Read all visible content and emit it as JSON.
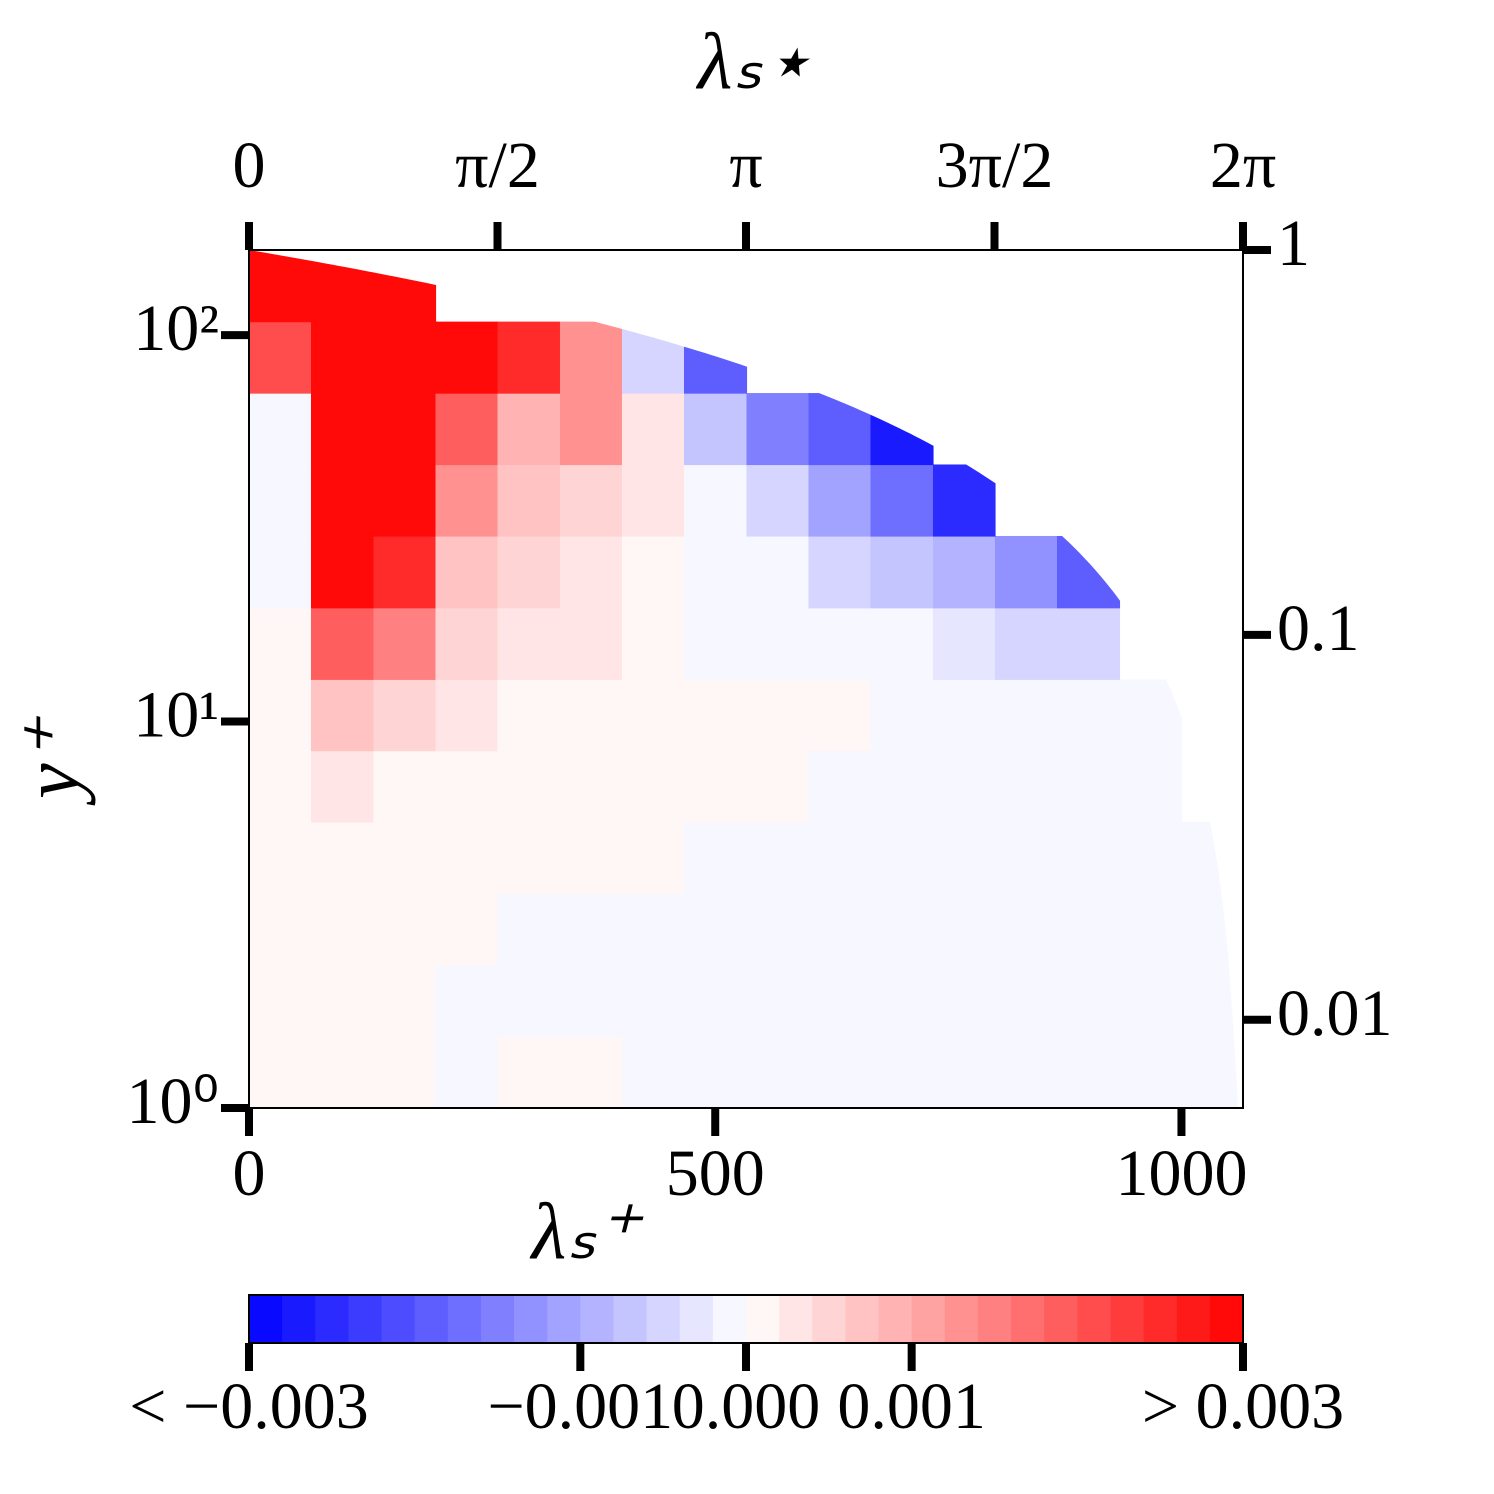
{
  "chart_data": {
    "type": "contour",
    "xlabel": "λₛ⁺",
    "ylabel": "y⁺",
    "x2label": "λₛ⋆",
    "xlim": [
      0,
      1066
    ],
    "xticks": [
      0,
      500,
      1000
    ],
    "x2lim": [
      0,
      6.2832
    ],
    "x2ticks": [
      0,
      {
        "value": 1.5708,
        "label": "π/2"
      },
      {
        "value": 3.1416,
        "label": "π"
      },
      {
        "value": 4.7124,
        "label": "3π/2"
      },
      {
        "value": 6.2832,
        "label": "2π"
      }
    ],
    "ylim": [
      1,
      166
    ],
    "yscale": "log",
    "yticks": [
      {
        "value": 1,
        "label": "10⁰"
      },
      {
        "value": 10,
        "label": "10¹"
      },
      {
        "value": 100,
        "label": "10²"
      }
    ],
    "y2lim": [
      0.0059,
      1
    ],
    "y2scale": "log",
    "y2ticks": [
      0.01,
      0.1,
      1
    ],
    "x": [
      33,
      100,
      167,
      233,
      300,
      367,
      433,
      500,
      567,
      633,
      700,
      767,
      833,
      900,
      967,
      1033
    ],
    "y": [
      1.24,
      1.89,
      2.9,
      4.44,
      6.8,
      10.4,
      15.9,
      24.4,
      37.4,
      57.2,
      87.6,
      134
    ],
    "z": [
      [
        0.0001,
        0.0001,
        0.0001,
        -0.0001,
        0.0001,
        0.0001,
        -0.0001,
        -0.0001,
        -0.0001,
        -0.0001,
        -0.0001,
        -0.0001,
        -0.0001,
        -0.0001,
        -0.0001,
        -0.0001
      ],
      [
        0.0001,
        0.0001,
        0.0001,
        -0.0001,
        -0.0001,
        -0.0001,
        -0.0001,
        -0.0001,
        -0.0001,
        -0.0001,
        -0.0001,
        -0.0001,
        -0.0001,
        -0.0001,
        -0.0001,
        -0.0001
      ],
      [
        0.0001,
        0.0001,
        0.0001,
        0.0001,
        -0.0001,
        -0.0001,
        -0.0001,
        -0.0001,
        -0.0001,
        -0.0001,
        -0.0001,
        -0.0001,
        -0.0001,
        -0.0001,
        -0.0001,
        -0.0001
      ],
      [
        0.0001,
        0.0001,
        0.0001,
        0.0001,
        0.0001,
        0.0001,
        0.0001,
        -0.0001,
        -0.0001,
        -0.0001,
        -0.0001,
        -0.0001,
        -0.0001,
        -0.0001,
        -0.0001,
        -0.0001
      ],
      [
        0,
        0.0003,
        0.0001,
        0.0001,
        0.0001,
        0.0001,
        0.0001,
        0.0001,
        0.0001,
        -0.0001,
        -0.0001,
        -0.0001,
        -0.0001,
        -0.0001,
        -0.0001,
        null
      ],
      [
        0,
        0.0006,
        0.0004,
        0.0002,
        0.0001,
        0.0001,
        0.0001,
        0.0001,
        0.0001,
        0.0001,
        -0.0001,
        -0.0001,
        -0.0001,
        -0.0001,
        -0.0002,
        null
      ],
      [
        0,
        0.0018,
        0.0014,
        0.0004,
        0.0002,
        0.0002,
        0.0001,
        -0.0001,
        -0.0001,
        -0.0001,
        -0.0002,
        -0.0003,
        -0.0004,
        -0.0006,
        null,
        null
      ],
      [
        -0.0001,
        0.003,
        0.0025,
        0.0006,
        0.0004,
        0.0002,
        0.0001,
        -0.0001,
        -0.0002,
        -0.0004,
        -0.0007,
        -0.001,
        -0.0014,
        -0.002,
        null,
        null
      ],
      [
        -0.0002,
        0.003,
        0.003,
        0.0012,
        0.0006,
        0.0004,
        0.0002,
        -0.0001,
        -0.0006,
        -0.0012,
        -0.0018,
        -0.0025,
        null,
        null,
        null,
        null
      ],
      [
        -0.0002,
        0.003,
        0.003,
        0.0018,
        0.0008,
        0.0012,
        0.0002,
        -0.0008,
        -0.0015,
        -0.002,
        -0.0028,
        null,
        null,
        null,
        null,
        null
      ],
      [
        0.002,
        0.003,
        0.003,
        0.003,
        0.0025,
        0.0012,
        -0.0005,
        -0.002,
        null,
        null,
        null,
        null,
        null,
        null,
        null,
        null
      ],
      [
        0.003,
        0.003,
        0.003,
        null,
        null,
        null,
        null,
        null,
        null,
        null,
        null,
        null,
        null,
        null,
        null,
        null
      ]
    ],
    "colorbar": {
      "lim": [
        -0.003,
        0.003
      ],
      "n_levels": 30,
      "colormap": "bwr",
      "ticks": [
        {
          "value": -0.003,
          "label": "< −0.003"
        },
        {
          "value": -0.001,
          "label": "−0.001"
        },
        {
          "value": 0,
          "label": "0.000"
        },
        {
          "value": 0.001,
          "label": "0.001"
        },
        {
          "value": 0.003,
          "label": "> 0.003"
        }
      ]
    }
  }
}
